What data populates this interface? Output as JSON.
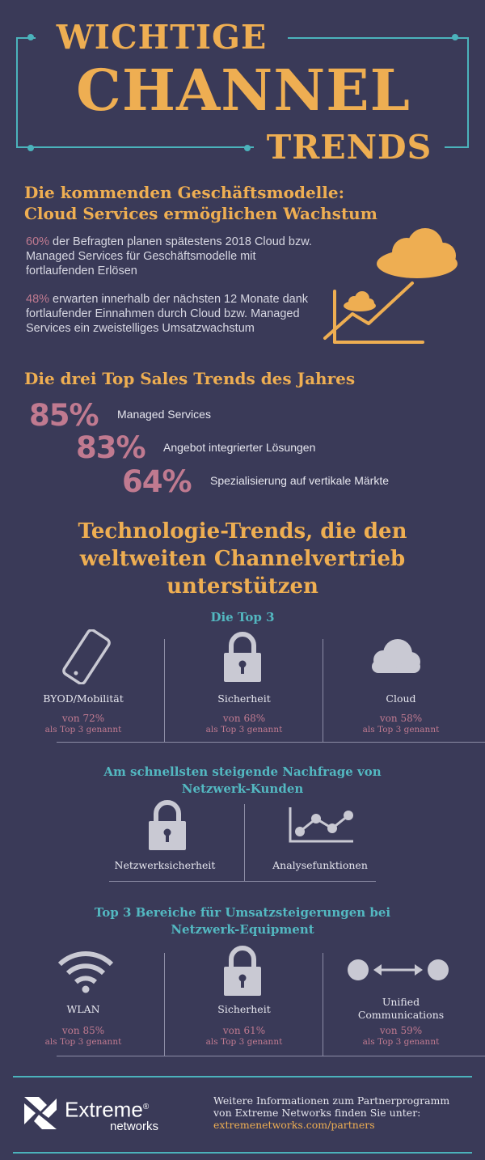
{
  "title": {
    "line1": "WICHTIGE",
    "line2": "CHANNEL",
    "line3": "TRENDS"
  },
  "business_models": {
    "heading_line1": "Die kommenden Geschäftsmodelle:",
    "heading_line2": "Cloud Services ermöglichen Wachstum",
    "stat1_pct": "60%",
    "stat1_text": " der Befragten planen spätestens 2018 Cloud bzw. Managed Services für Geschäftsmodelle mit fortlaufenden Erlösen",
    "stat2_pct": "48%",
    "stat2_text": " erwarten innerhalb der nächsten 12 Monate dank fortlaufender Einnahmen durch Cloud bzw. Managed Services ein zweistelliges Umsatzwachstum"
  },
  "sales_trends": {
    "heading": "Die drei Top Sales Trends des Jahres",
    "items": [
      {
        "pct": "85%",
        "label": "Managed Services"
      },
      {
        "pct": "83%",
        "label": "Angebot integrierter Lösungen"
      },
      {
        "pct": "64%",
        "label": "Spezialisierung auf vertikale Märkte"
      }
    ]
  },
  "tech_trends": {
    "heading_line1": "Technologie-Trends, die den",
    "heading_line2": "weltweiten Channelvertrieb",
    "heading_line3": "unterstützen",
    "top3_heading": "Die Top 3",
    "top3": [
      {
        "icon": "smartphone-icon",
        "label": "BYOD/Mobilität",
        "value": "von 72%",
        "sub": "als Top 3 genannt"
      },
      {
        "icon": "lock-icon",
        "label": "Sicherheit",
        "value": "von 68%",
        "sub": "als Top 3 genannt"
      },
      {
        "icon": "cloud-icon",
        "label": "Cloud",
        "value": "von 58%",
        "sub": "als Top 3 genannt"
      }
    ]
  },
  "network_demand": {
    "heading_line1": "Am schnellsten steigende Nachfrage von",
    "heading_line2": "Netzwerk-Kunden",
    "items": [
      {
        "icon": "lock-icon",
        "label": "Netzwerksicherheit"
      },
      {
        "icon": "line-chart-icon",
        "label": "Analysefunktionen"
      }
    ]
  },
  "equipment": {
    "heading_line1": "Top 3 Bereiche für Umsatzsteigerungen bei",
    "heading_line2": "Netzwerk-Equipment",
    "items": [
      {
        "icon": "wifi-icon",
        "label": "WLAN",
        "value": "von 85%",
        "sub": "als Top 3 genannt"
      },
      {
        "icon": "lock-icon",
        "label": "Sicherheit",
        "value": "von 61%",
        "sub": "als Top 3 genannt"
      },
      {
        "icon": "communications-icon",
        "label_line1": "Unified",
        "label_line2": "Communications",
        "value": "von 59%",
        "sub": "als Top 3 genannt"
      }
    ]
  },
  "footer": {
    "brand": "Extreme",
    "brand_reg": "®",
    "brand_sub": "networks",
    "info_line1": "Weitere Informationen zum Partnerprogramm",
    "info_line2": "von Extreme Networks finden Sie unter:",
    "link": "extremenetworks.com/partners"
  },
  "colors": {
    "background": "#3a3a58",
    "accent_orange": "#eeae52",
    "accent_pink": "#c07a90",
    "accent_teal": "#53b8c1",
    "icon_gray": "#c9c9d3"
  }
}
